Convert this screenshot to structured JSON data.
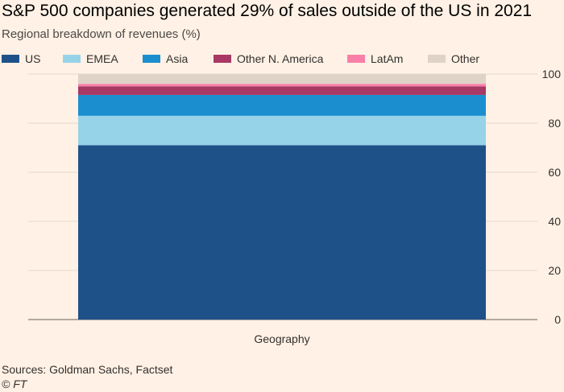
{
  "header": {
    "title": "S&P 500 companies generated 29% of sales outside of the US in 2021",
    "subtitle": "Regional breakdown of revenues (%)"
  },
  "footer": {
    "source": "Sources: Goldman Sachs, Factset",
    "credit": "© FT"
  },
  "colors": {
    "background": "#fff1e5",
    "US": "#1f5189",
    "EMEA": "#96d3e8",
    "Asia": "#1b8ed0",
    "Other N. America": "#a83864",
    "LatAm": "#f87fa8",
    "Other": "#dfd2c6",
    "grid": "#e3d6cb"
  },
  "chart_data": {
    "type": "bar",
    "stacked": true,
    "title": "S&P 500 companies generated 29% of sales outside of the US in 2021",
    "subtitle": "Regional breakdown of revenues (%)",
    "categories": [
      "Geography"
    ],
    "xlabel": "",
    "ylabel": "",
    "ylim": [
      0,
      100
    ],
    "yticks": [
      0,
      20,
      40,
      60,
      80,
      100
    ],
    "y_axis_position": "right",
    "legend_position": "top",
    "grid": true,
    "series": [
      {
        "name": "US",
        "values": [
          71
        ]
      },
      {
        "name": "EMEA",
        "values": [
          12
        ]
      },
      {
        "name": "Asia",
        "values": [
          8.5
        ]
      },
      {
        "name": "Other N. America",
        "values": [
          3.5
        ]
      },
      {
        "name": "LatAm",
        "values": [
          1
        ]
      },
      {
        "name": "Other",
        "values": [
          4
        ]
      }
    ]
  }
}
